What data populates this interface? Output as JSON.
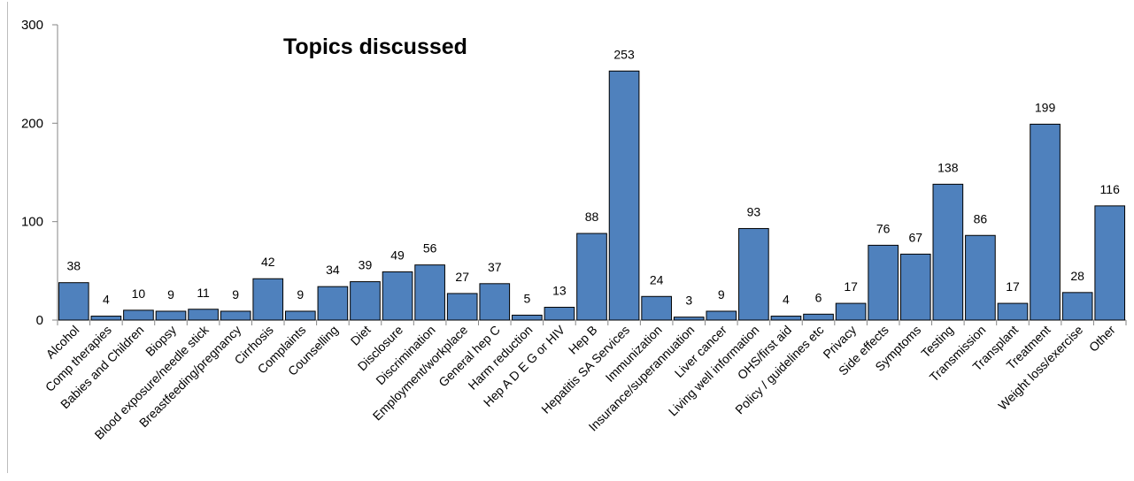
{
  "chart_data": {
    "type": "bar",
    "title": "Topics discussed",
    "xlabel": "",
    "ylabel": "",
    "ylim": [
      0,
      300
    ],
    "yticks": [
      0,
      100,
      200,
      300
    ],
    "grid": false,
    "legend": "none",
    "bar_color": "#4F81BD",
    "bar_edge_color": "#000000",
    "categories": [
      "Alcohol",
      "Comp therapies",
      "Babies and Children",
      "Biopsy",
      "Blood exposure/needle stick",
      "Breastfeeding/pregnancy",
      "Cirrhosis",
      "Complaints",
      "Counselling",
      "Diet",
      "Disclosure",
      "Discrimination",
      "Employment/workplace",
      "General hep C",
      "Harm reduction",
      "Hep A  D  E  G or HIV",
      "Hep B",
      "Hepatitis SA Services",
      "Immunization",
      "Insurance/superannuation",
      "Liver cancer",
      "Living well information",
      "OHS/first aid",
      "Policy / guidelines etc",
      "Privacy",
      "Side effects",
      "Symptoms",
      "Testing",
      "Transmission",
      "Transplant",
      "Treatment",
      "Weight loss/exercise",
      "Other"
    ],
    "values": [
      38,
      4,
      10,
      9,
      11,
      9,
      42,
      9,
      34,
      39,
      49,
      56,
      27,
      37,
      5,
      13,
      88,
      253,
      24,
      3,
      9,
      93,
      4,
      6,
      17,
      76,
      67,
      138,
      86,
      17,
      199,
      28,
      116
    ]
  }
}
